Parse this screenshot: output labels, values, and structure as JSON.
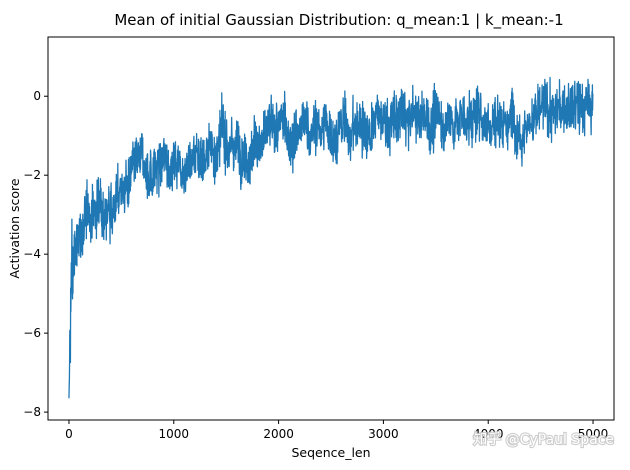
{
  "chart_data": {
    "type": "line",
    "title": "Mean of initial Gaussian Distribution: q_mean:1 | k_mean:-1",
    "xlabel": "Seqence_len",
    "ylabel": "Activation score",
    "xlim": [
      -200,
      5200
    ],
    "ylim": [
      -8.2,
      1.5
    ],
    "xticks": [
      0,
      1000,
      2000,
      3000,
      4000,
      5000
    ],
    "yticks": [
      -8,
      -6,
      -4,
      -2,
      0
    ],
    "grid": false,
    "line_color": "#1f77b4",
    "series": [
      {
        "x": [
          0,
          25,
          50,
          75,
          100,
          150,
          200,
          300,
          400,
          500,
          700,
          1000,
          1300,
          1500,
          2000,
          2500,
          3000,
          3500,
          4000,
          4500,
          5000
        ],
        "values": [
          -7.5,
          -4.6,
          -4.2,
          -3.8,
          -3.6,
          -3.2,
          -3.0,
          -2.7,
          -2.5,
          -2.3,
          -2.0,
          -1.6,
          -1.3,
          -1.2,
          -1.0,
          -0.85,
          -0.7,
          -0.6,
          -0.5,
          -0.42,
          -0.35
        ]
      }
    ]
  },
  "watermark": "知乎 @CyPaul Space"
}
